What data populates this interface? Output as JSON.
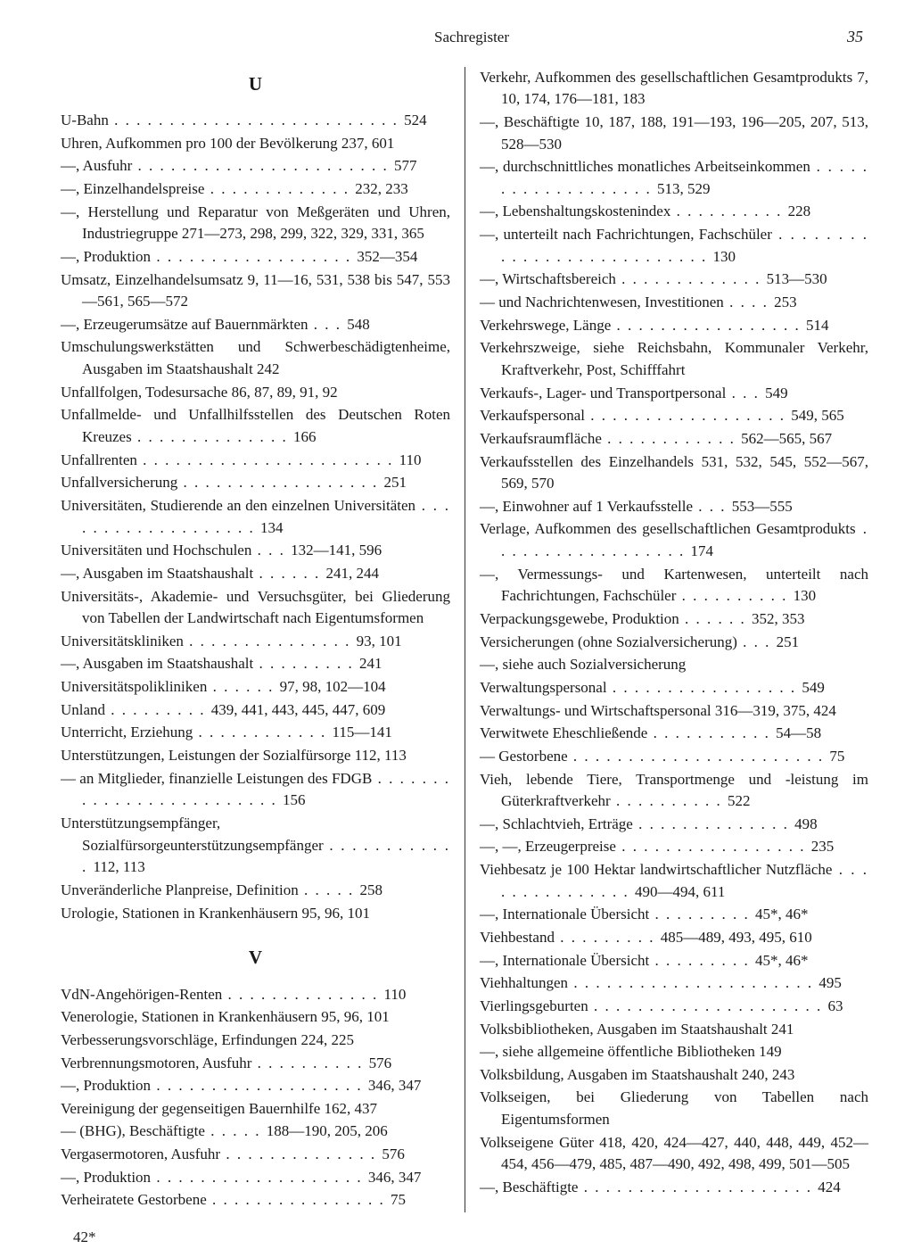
{
  "header": {
    "title": "Sachregister",
    "page_number": "35"
  },
  "footer": "42*",
  "letters": {
    "U": "U",
    "V": "V"
  },
  "left_column": {
    "section_U": [
      {
        "t": "U-Bahn",
        "d": " . . . . . . . . . . . . . . . . . . . . . . . . . . ",
        "p": "524"
      },
      {
        "t": "Uhren, Aufkommen pro 100 der Bevölkerung  237, 601",
        "d": "",
        "p": ""
      },
      {
        "t": "—, Ausfuhr",
        "d": " . . . . . . . . . . . . . . . . . . . . . . . ",
        "p": "577"
      },
      {
        "t": "—, Einzelhandelspreise",
        "d": " . . . . . . . . . . . . . ",
        "p": "232, 233"
      },
      {
        "t": "—, Herstellung und Reparatur von Meßgeräten und Uhren, Industriegruppe 271—273, 298, 299, 322, 329, 331, 365",
        "d": "",
        "p": ""
      },
      {
        "t": "—, Produktion",
        "d": " . . . . . . . . . . . . . . . . . . ",
        "p": "352—354"
      },
      {
        "t": "Umsatz, Einzelhandelsumsatz  9, 11—16, 531, 538 bis 547, 553—561, 565—572",
        "d": "",
        "p": ""
      },
      {
        "t": "—, Erzeugerumsätze auf Bauernmärkten",
        "d": " . . . ",
        "p": "548"
      },
      {
        "t": "Umschulungswerkstätten und Schwerbeschädigtenheime, Ausgaben im Staatshaushalt 242",
        "d": "",
        "p": ""
      },
      {
        "t": "Unfallfolgen, Todesursache       86, 87, 89, 91, 92",
        "d": "",
        "p": ""
      },
      {
        "t": "Unfallmelde- und Unfallhilfsstellen des Deutschen Roten Kreuzes",
        "d": " . . . . . . . . . . . . . . ",
        "p": "166"
      },
      {
        "t": "Unfallrenten",
        "d": " . . . . . . . . . . . . . . . . . . . . . . . ",
        "p": "110"
      },
      {
        "t": "Unfallversicherung",
        "d": " . . . . . . . . . . . . . . . . . . ",
        "p": "251"
      },
      {
        "t": "Universitäten, Studierende an den einzelnen Universitäten",
        "d": " . . . . . . . . . . . . . . . . . . . ",
        "p": "134"
      },
      {
        "t": "Universitäten und Hochschulen",
        "d": " . . . ",
        "p": "132—141, 596"
      },
      {
        "t": "—, Ausgaben im Staatshaushalt",
        "d": " . . . . . . ",
        "p": "241, 244"
      },
      {
        "t": "Universitäts-, Akademie- und Versuchsgüter, bei Gliederung von Tabellen der Landwirtschaft nach Eigentumsformen",
        "d": "",
        "p": ""
      },
      {
        "t": "Universitätskliniken",
        "d": " . . . . . . . . . . . . . . . ",
        "p": "93, 101"
      },
      {
        "t": "—, Ausgaben im Staatshaushalt",
        "d": " . . . . . . . . . ",
        "p": "241"
      },
      {
        "t": "Universitätspolikliniken",
        "d": " . . . . . . ",
        "p": "97, 98, 102—104"
      },
      {
        "t": "Unland",
        "d": " . . . . . . . . . ",
        "p": "439, 441, 443, 445, 447, 609"
      },
      {
        "t": "Unterricht, Erziehung",
        "d": " . . . . . . . . . . . . ",
        "p": "115—141"
      },
      {
        "t": "Unterstützungen, Leistungen der Sozialfürsorge 112, 113",
        "d": "",
        "p": ""
      },
      {
        "t": "— an Mitglieder, finanzielle Leistungen des FDGB",
        "d": " . . . . . . . . . . . . . . . . . . . . . . . . . ",
        "p": "156"
      },
      {
        "t": "Unterstützungsempfänger, Sozialfürsorgeunterstützungsempfänger",
        "d": " . . . . . . . . . . . . ",
        "p": "112, 113"
      },
      {
        "t": "Unveränderliche Planpreise, Definition",
        "d": " . . . . . ",
        "p": "258"
      },
      {
        "t": "Urologie, Stationen in Krankenhäusern 95, 96, 101",
        "d": "",
        "p": ""
      }
    ],
    "section_V": [
      {
        "t": "VdN-Angehörigen-Renten",
        "d": " . . . . . . . . . . . . . . ",
        "p": "110"
      },
      {
        "t": "Venerologie, Stationen in Krankenhäusern  95, 96, 101",
        "d": "",
        "p": ""
      },
      {
        "t": "Verbesserungsvorschläge, Erfindungen     224, 225",
        "d": "",
        "p": ""
      },
      {
        "t": "Verbrennungsmotoren, Ausfuhr",
        "d": " . . . . . . . . . . ",
        "p": "576"
      },
      {
        "t": "—, Produktion",
        "d": " . . . . . . . . . . . . . . . . . . . ",
        "p": "346, 347"
      },
      {
        "t": "Vereinigung der gegenseitigen Bauernhilfe 162, 437",
        "d": "",
        "p": ""
      },
      {
        "t": "— (BHG), Beschäftigte",
        "d": " . . . . . ",
        "p": "188—190, 205, 206"
      },
      {
        "t": "Vergasermotoren, Ausfuhr",
        "d": " . . . . . . . . . . . . . . ",
        "p": "576"
      },
      {
        "t": "—, Produktion",
        "d": " . . . . . . . . . . . . . . . . . . . ",
        "p": "346, 347"
      },
      {
        "t": "Verheiratete Gestorbene",
        "d": " . . . . . . . . . . . . . . . . ",
        "p": "75"
      }
    ]
  },
  "right_column": {
    "entries": [
      {
        "t": "Verkehr, Aufkommen des gesellschaftlichen Gesamtprodukts    7, 10, 174, 176—181, 183",
        "d": "",
        "p": ""
      },
      {
        "t": "—, Beschäftigte  10, 187, 188, 191—193, 196—205, 207, 513, 528—530",
        "d": "",
        "p": ""
      },
      {
        "t": "—, durchschnittliches monatliches Arbeitseinkommen",
        "d": " . . . . . . . . . . . . . . . . . . . ",
        "p": "513, 529"
      },
      {
        "t": "—, Lebenshaltungskostenindex",
        "d": " . . . . . . . . . . ",
        "p": "228"
      },
      {
        "t": "—, unterteilt nach Fachrichtungen, Fachschüler",
        "d": " . . . . . . . . . . . . . . . . . . . . . . . . . . . ",
        "p": "130"
      },
      {
        "t": "—, Wirtschaftsbereich",
        "d": " . . . . . . . . . . . . . ",
        "p": "513—530"
      },
      {
        "t": "— und Nachrichtenwesen, Investitionen",
        "d": " . . . . ",
        "p": "253"
      },
      {
        "t": "Verkehrswege, Länge",
        "d": " . . . . . . . . . . . . . . . . . ",
        "p": "514"
      },
      {
        "t": "Verkehrszweige, siehe Reichsbahn, Kommunaler Verkehr, Kraftverkehr, Post, Schifffahrt",
        "d": "",
        "p": ""
      },
      {
        "t": "Verkaufs-, Lager- und Transportpersonal",
        "d": " . . . ",
        "p": "549"
      },
      {
        "t": "Verkaufspersonal",
        "d": " . . . . . . . . . . . . . . . . . . ",
        "p": "549, 565"
      },
      {
        "t": "Verkaufsraumfläche",
        "d": " . . . . . . . . . . . . ",
        "p": "562—565, 567"
      },
      {
        "t": "Verkaufsstellen des Einzelhandels   531, 532, 545, 552—567, 569, 570",
        "d": "",
        "p": ""
      },
      {
        "t": "—, Einwohner auf 1 Verkaufsstelle",
        "d": " . . . ",
        "p": "553—555"
      },
      {
        "t": "Verlage, Aufkommen des gesellschaftlichen Gesamtprodukts",
        "d": " . . . . . . . . . . . . . . . . . . ",
        "p": "174"
      },
      {
        "t": "—, Vermessungs- und Kartenwesen, unterteilt nach Fachrichtungen, Fachschüler",
        "d": " . . . . . . . . . . ",
        "p": "130"
      },
      {
        "t": "Verpackungsgewebe, Produktion",
        "d": " . . . . . . ",
        "p": "352, 353"
      },
      {
        "t": "Versicherungen (ohne Sozialversicherung)",
        "d": " . . . ",
        "p": "251"
      },
      {
        "t": "—, siehe auch Sozialversicherung",
        "d": "",
        "p": ""
      },
      {
        "t": "Verwaltungspersonal",
        "d": " . . . . . . . . . . . . . . . . . ",
        "p": "549"
      },
      {
        "t": "Verwaltungs- und Wirtschaftspersonal    316—319, 375, 424",
        "d": "",
        "p": ""
      },
      {
        "t": "Verwitwete Eheschließende",
        "d": " . . . . . . . . . . . ",
        "p": "54—58"
      },
      {
        "t": "— Gestorbene",
        "d": " . . . . . . . . . . . . . . . . . . . . . . . ",
        "p": "75"
      },
      {
        "t": "Vieh, lebende Tiere, Transportmenge und -leistung im Güterkraftverkehr",
        "d": " . . . . . . . . . . ",
        "p": "522"
      },
      {
        "t": "—, Schlachtvieh, Erträge",
        "d": " . . . . . . . . . . . . . . ",
        "p": "498"
      },
      {
        "t": "—, —, Erzeugerpreise",
        "d": " . . . . . . . . . . . . . . . . . ",
        "p": "235"
      },
      {
        "t": "Viehbesatz je 100 Hektar landwirtschaftlicher Nutzfläche",
        "d": " . . . . . . . . . . . . . . . ",
        "p": "490—494, 611"
      },
      {
        "t": "—, Internationale Übersicht",
        "d": " . . . . . . . . . ",
        "p": "45*, 46*"
      },
      {
        "t": "Viehbestand",
        "d": " . . . . . . . . . ",
        "p": "485—489, 493, 495, 610"
      },
      {
        "t": "—, Internationale Übersicht",
        "d": " . . . . . . . . . ",
        "p": "45*, 46*"
      },
      {
        "t": "Viehhaltungen",
        "d": " . . . . . . . . . . . . . . . . . . . . . . ",
        "p": "495"
      },
      {
        "t": "Vierlingsgeburten",
        "d": " . . . . . . . . . . . . . . . . . . . . . ",
        "p": "63"
      },
      {
        "t": "Volksbibliotheken, Ausgaben im Staatshaushalt 241",
        "d": "",
        "p": ""
      },
      {
        "t": "—, siehe allgemeine öffentliche Bibliotheken   149",
        "d": "",
        "p": ""
      },
      {
        "t": "Volksbildung, Ausgaben im Staatshaushalt 240, 243",
        "d": "",
        "p": ""
      },
      {
        "t": "Volkseigen, bei Gliederung von Tabellen nach Eigentumsformen",
        "d": "",
        "p": ""
      },
      {
        "t": "Volkseigene Güter   418, 420, 424—427, 440, 448, 449, 452—454, 456—479, 485, 487—490, 492, 498, 499, 501—505",
        "d": "",
        "p": ""
      },
      {
        "t": "—, Beschäftigte",
        "d": " . . . . . . . . . . . . . . . . . . . . . ",
        "p": "424"
      }
    ]
  }
}
